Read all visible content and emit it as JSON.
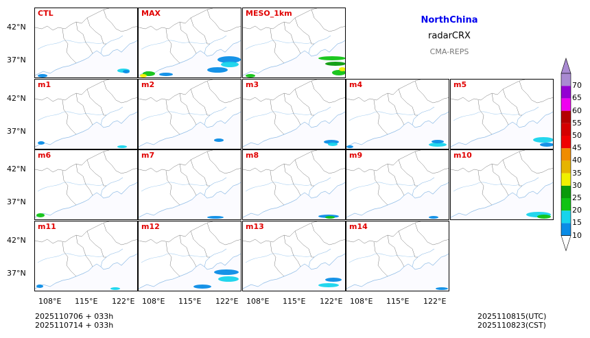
{
  "header": {
    "region": "NorthChina",
    "variable": "radarCRX",
    "model": "CMA-REPS"
  },
  "panels": [
    "CTL",
    "MAX",
    "MESO_1km",
    "m1",
    "m2",
    "m3",
    "m4",
    "m5",
    "m6",
    "m7",
    "m8",
    "m9",
    "m10",
    "m11",
    "m12",
    "m13",
    "m14"
  ],
  "axes": {
    "lat_labels": [
      "42°N",
      "37°N"
    ],
    "lon_labels": [
      "108°E",
      "115°E",
      "122°E"
    ]
  },
  "colorbar": {
    "levels": [
      "10",
      "15",
      "20",
      "25",
      "30",
      "35",
      "40",
      "45",
      "50",
      "55",
      "60",
      "65",
      "70"
    ],
    "colors": [
      "#0a8ce6",
      "#17d4ec",
      "#10c314",
      "#0a9a0a",
      "#f0f000",
      "#e6b400",
      "#f08c00",
      "#f00000",
      "#d40000",
      "#b40000",
      "#f000f0",
      "#9400d2",
      "#a98ad2"
    ],
    "under_color": "#ffffff"
  },
  "footer": {
    "init_utc": "2025110706  +  033h",
    "init_cst": "2025110714  +  033h",
    "valid_utc": "2025110815(UTC)",
    "valid_cst": "2025110823(CST)"
  }
}
